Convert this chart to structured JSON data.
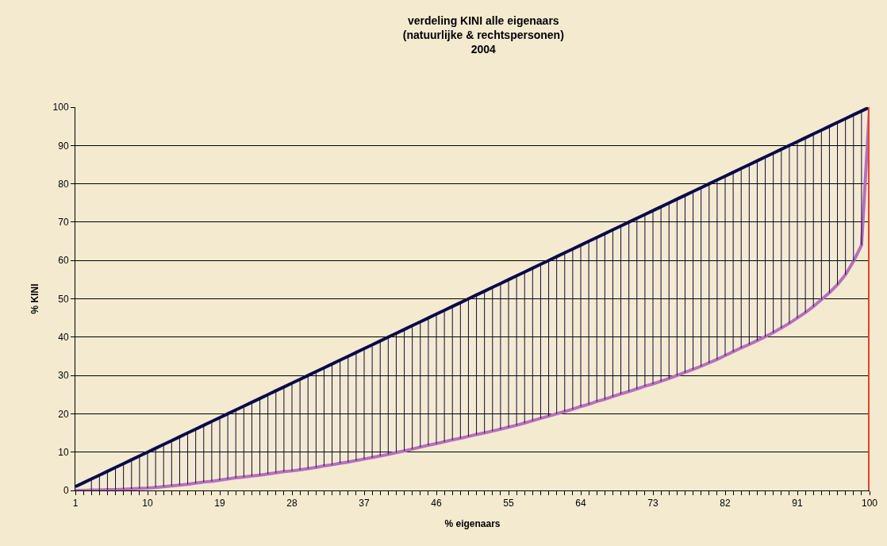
{
  "chart_data": {
    "type": "line",
    "title": "verdeling KINI alle eigenaars\n(natuurlijke & rechtspersonen)\n2004",
    "xlabel": "% eigenaars",
    "ylabel": "% KINI",
    "x": [
      1,
      2,
      3,
      4,
      5,
      6,
      7,
      8,
      9,
      10,
      11,
      12,
      13,
      14,
      15,
      16,
      17,
      18,
      19,
      20,
      21,
      22,
      23,
      24,
      25,
      26,
      27,
      28,
      29,
      30,
      31,
      32,
      33,
      34,
      35,
      36,
      37,
      38,
      39,
      40,
      41,
      42,
      43,
      44,
      45,
      46,
      47,
      48,
      49,
      50,
      51,
      52,
      53,
      54,
      55,
      56,
      57,
      58,
      59,
      60,
      61,
      62,
      63,
      64,
      65,
      66,
      67,
      68,
      69,
      70,
      71,
      72,
      73,
      74,
      75,
      76,
      77,
      78,
      79,
      80,
      81,
      82,
      83,
      84,
      85,
      86,
      87,
      88,
      89,
      90,
      91,
      92,
      93,
      94,
      95,
      96,
      97,
      98,
      99,
      100
    ],
    "series": [
      {
        "color": "#0a0a4a",
        "values": [
          1,
          2,
          3,
          4,
          5,
          6,
          7,
          8,
          9,
          10,
          11,
          12,
          13,
          14,
          15,
          16,
          17,
          18,
          19,
          20,
          21,
          22,
          23,
          24,
          25,
          26,
          27,
          28,
          29,
          30,
          31,
          32,
          33,
          34,
          35,
          36,
          37,
          38,
          39,
          40,
          41,
          42,
          43,
          44,
          45,
          46,
          47,
          48,
          49,
          50,
          51,
          52,
          53,
          54,
          55,
          56,
          57,
          58,
          59,
          60,
          61,
          62,
          63,
          64,
          65,
          66,
          67,
          68,
          69,
          70,
          71,
          72,
          73,
          74,
          75,
          76,
          77,
          78,
          79,
          80,
          81,
          82,
          83,
          84,
          85,
          86,
          87,
          88,
          89,
          90,
          91,
          92,
          93,
          94,
          95,
          96,
          97,
          98,
          99,
          100
        ],
        "errors": [
          null,
          null,
          [
            0.1,
            3
          ],
          [
            0.1,
            4
          ],
          [
            0.2,
            5
          ],
          [
            0.2,
            6
          ],
          [
            0.3,
            7
          ],
          [
            0.4,
            8
          ],
          [
            0.5,
            9
          ],
          [
            0.6,
            10
          ],
          [
            0.8,
            11
          ],
          [
            1.0,
            12
          ],
          [
            1.2,
            13
          ],
          [
            1.4,
            14
          ],
          [
            1.6,
            15
          ],
          [
            1.9,
            16
          ],
          [
            2.2,
            17
          ],
          [
            2.4,
            18
          ],
          [
            2.7,
            19
          ],
          [
            3.0,
            20
          ],
          [
            3.3,
            21
          ],
          [
            3.5,
            22
          ],
          [
            3.8,
            23
          ],
          [
            4.0,
            24
          ],
          [
            4.3,
            25
          ],
          [
            4.6,
            26
          ],
          [
            4.9,
            27
          ],
          [
            5.1,
            28
          ],
          [
            5.4,
            29
          ],
          [
            5.7,
            30
          ],
          [
            6.0,
            31
          ],
          [
            6.4,
            32
          ],
          [
            6.7,
            33
          ],
          [
            7.1,
            34
          ],
          [
            7.4,
            35
          ],
          [
            7.8,
            36
          ],
          [
            8.2,
            37
          ],
          [
            8.6,
            38
          ],
          [
            9.0,
            39
          ],
          [
            9.4,
            40
          ],
          [
            9.9,
            41
          ],
          [
            10.3,
            42
          ],
          [
            10.8,
            43
          ],
          [
            11.3,
            44
          ],
          [
            11.8,
            45
          ],
          [
            12.2,
            46
          ],
          [
            12.7,
            47
          ],
          [
            13.2,
            48
          ],
          [
            13.6,
            49
          ],
          [
            14.1,
            50
          ],
          [
            14.6,
            51
          ],
          [
            15.0,
            52
          ],
          [
            15.5,
            53
          ],
          [
            16.0,
            54
          ],
          [
            16.5,
            55
          ],
          [
            17.0,
            56
          ],
          [
            17.6,
            57
          ],
          [
            18.2,
            58
          ],
          [
            18.8,
            59
          ],
          [
            19.4,
            60
          ],
          [
            20.0,
            61
          ],
          [
            20.6,
            62
          ],
          [
            21.2,
            63
          ],
          [
            21.9,
            64
          ],
          [
            22.5,
            65
          ],
          [
            23.2,
            66
          ],
          [
            23.8,
            67
          ],
          [
            24.5,
            68
          ],
          [
            25.2,
            69
          ],
          [
            25.8,
            70
          ],
          [
            26.5,
            71
          ],
          [
            27.2,
            72
          ],
          [
            27.8,
            73
          ],
          [
            28.5,
            74
          ],
          [
            29.2,
            75
          ],
          [
            30.0,
            76
          ],
          [
            30.8,
            77
          ],
          [
            31.6,
            78
          ],
          [
            32.4,
            79
          ],
          [
            33.3,
            80
          ],
          [
            34.2,
            81
          ],
          [
            35.2,
            82
          ],
          [
            36.2,
            83
          ],
          [
            37.2,
            84
          ],
          [
            38.1,
            85
          ],
          [
            39.1,
            86
          ],
          [
            40.1,
            87
          ],
          [
            41.2,
            88
          ],
          [
            42.4,
            89
          ],
          [
            43.6,
            90
          ],
          [
            45.0,
            91
          ],
          [
            46.4,
            92
          ],
          [
            48.0,
            93
          ],
          [
            49.8,
            94
          ],
          [
            51.6,
            95
          ],
          [
            53.7,
            96
          ],
          [
            56.3,
            97
          ],
          [
            59.8,
            98
          ],
          [
            64.0,
            99
          ],
          [
            100,
            100
          ]
        ]
      },
      {
        "color": "#b86fbd",
        "values": [
          0,
          0,
          0.1,
          0.1,
          0.2,
          0.2,
          0.3,
          0.4,
          0.5,
          0.6,
          0.8,
          1.0,
          1.2,
          1.4,
          1.6,
          1.9,
          2.2,
          2.4,
          2.7,
          3.0,
          3.3,
          3.5,
          3.8,
          4.0,
          4.3,
          4.6,
          4.9,
          5.1,
          5.4,
          5.7,
          6.0,
          6.4,
          6.7,
          7.1,
          7.4,
          7.8,
          8.2,
          8.6,
          9.0,
          9.4,
          9.9,
          10.3,
          10.8,
          11.3,
          11.8,
          12.2,
          12.7,
          13.2,
          13.6,
          14.1,
          14.6,
          15.0,
          15.5,
          16.0,
          16.5,
          17.0,
          17.6,
          18.2,
          18.8,
          19.4,
          20.0,
          20.6,
          21.2,
          21.9,
          22.5,
          23.2,
          23.8,
          24.5,
          25.2,
          25.8,
          26.5,
          27.2,
          27.8,
          28.5,
          29.2,
          30.0,
          30.8,
          31.6,
          32.4,
          33.3,
          34.2,
          35.2,
          36.2,
          37.2,
          38.1,
          39.1,
          40.1,
          41.2,
          42.4,
          43.6,
          45.0,
          46.4,
          48.0,
          49.8,
          51.6,
          53.7,
          56.3,
          59.8,
          64.0,
          100
        ]
      }
    ],
    "xlim": [
      1,
      100
    ],
    "xticks": [
      1,
      {
        "value": 2,
        "label": null
      },
      {
        "value": 3,
        "label": null
      },
      {
        "value": 4,
        "label": null
      },
      {
        "value": 5,
        "label": null
      },
      {
        "value": 6,
        "label": null
      },
      {
        "value": 7,
        "label": null
      },
      {
        "value": 8,
        "label": null
      },
      {
        "value": 9,
        "label": null
      },
      10,
      {
        "value": 11,
        "label": null
      },
      {
        "value": 12,
        "label": null
      },
      {
        "value": 13,
        "label": null
      },
      {
        "value": 14,
        "label": null
      },
      {
        "value": 15,
        "label": null
      },
      {
        "value": 16,
        "label": null
      },
      {
        "value": 17,
        "label": null
      },
      {
        "value": 18,
        "label": null
      },
      19,
      {
        "value": 20,
        "label": null
      },
      {
        "value": 21,
        "label": null
      },
      {
        "value": 22,
        "label": null
      },
      {
        "value": 23,
        "label": null
      },
      {
        "value": 24,
        "label": null
      },
      {
        "value": 25,
        "label": null
      },
      {
        "value": 26,
        "label": null
      },
      {
        "value": 27,
        "label": null
      },
      28,
      {
        "value": 29,
        "label": null
      },
      {
        "value": 30,
        "label": null
      },
      {
        "value": 31,
        "label": null
      },
      {
        "value": 32,
        "label": null
      },
      {
        "value": 33,
        "label": null
      },
      {
        "value": 34,
        "label": null
      },
      {
        "value": 35,
        "label": null
      },
      {
        "value": 36,
        "label": null
      },
      37,
      {
        "value": 38,
        "label": null
      },
      {
        "value": 39,
        "label": null
      },
      {
        "value": 40,
        "label": null
      },
      {
        "value": 41,
        "label": null
      },
      {
        "value": 42,
        "label": null
      },
      {
        "value": 43,
        "label": null
      },
      {
        "value": 44,
        "label": null
      },
      {
        "value": 45,
        "label": null
      },
      46,
      {
        "value": 47,
        "label": null
      },
      {
        "value": 48,
        "label": null
      },
      {
        "value": 49,
        "label": null
      },
      {
        "value": 50,
        "label": null
      },
      {
        "value": 51,
        "label": null
      },
      {
        "value": 52,
        "label": null
      },
      {
        "value": 53,
        "label": null
      },
      {
        "value": 54,
        "label": null
      },
      55,
      {
        "value": 56,
        "label": null
      },
      {
        "value": 57,
        "label": null
      },
      {
        "value": 58,
        "label": null
      },
      {
        "value": 59,
        "label": null
      },
      {
        "value": 60,
        "label": null
      },
      {
        "value": 61,
        "label": null
      },
      {
        "value": 62,
        "label": null
      },
      {
        "value": 63,
        "label": null
      },
      64,
      {
        "value": 65,
        "label": null
      },
      {
        "value": 66,
        "label": null
      },
      {
        "value": 67,
        "label": null
      },
      {
        "value": 68,
        "label": null
      },
      {
        "value": 69,
        "label": null
      },
      {
        "value": 70,
        "label": null
      },
      {
        "value": 71,
        "label": null
      },
      {
        "value": 72,
        "label": null
      },
      73,
      {
        "value": 74,
        "label": null
      },
      {
        "value": 75,
        "label": null
      },
      {
        "value": 76,
        "label": null
      },
      {
        "value": 77,
        "label": null
      },
      {
        "value": 78,
        "label": null
      },
      {
        "value": 79,
        "label": null
      },
      {
        "value": 80,
        "label": null
      },
      {
        "value": 81,
        "label": null
      },
      82,
      {
        "value": 83,
        "label": null
      },
      {
        "value": 84,
        "label": null
      },
      {
        "value": 85,
        "label": null
      },
      {
        "value": 86,
        "label": null
      },
      {
        "value": 87,
        "label": null
      },
      {
        "value": 88,
        "label": null
      },
      {
        "value": 89,
        "label": null
      },
      {
        "value": 90,
        "label": null
      },
      91,
      {
        "value": 92,
        "label": null
      },
      {
        "value": 93,
        "label": null
      },
      {
        "value": 94,
        "label": null
      },
      {
        "value": 95,
        "label": null
      },
      {
        "value": 96,
        "label": null
      },
      {
        "value": 97,
        "label": null
      },
      {
        "value": 98,
        "label": null
      },
      {
        "value": 99,
        "label": null
      },
      100
    ],
    "ylim": [
      0,
      100
    ],
    "yticks": [
      0,
      10,
      20,
      30,
      40,
      50,
      60,
      70,
      80,
      90,
      100
    ],
    "grid": "y",
    "marker": "none",
    "line_style": "solid",
    "ref_lines": [
      {
        "axis": "x",
        "value": 100,
        "color": "#e8402a"
      }
    ]
  }
}
